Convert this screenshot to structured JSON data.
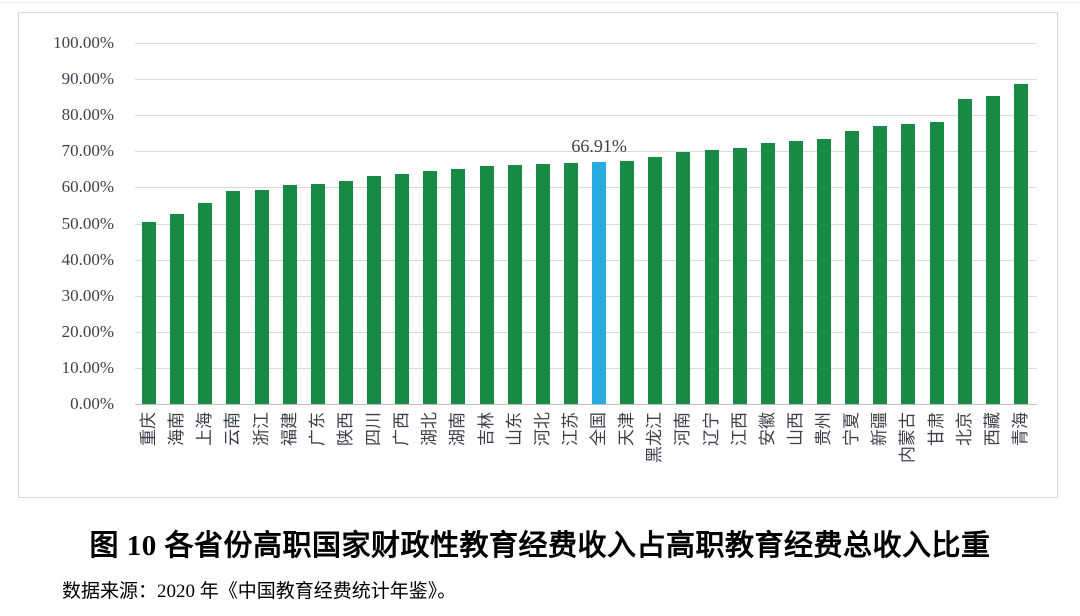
{
  "figure": {
    "caption": "图 10  各省份高职国家财政性教育经费收入占高职教育经费总收入比重",
    "source_note": "数据来源：2020 年《中国教育经费统计年鉴》。"
  },
  "chart_data": {
    "type": "bar",
    "title": "",
    "xlabel": "",
    "ylabel": "",
    "ylim": [
      0,
      100
    ],
    "grid": true,
    "legend": "none",
    "yticks": [
      "100.00%",
      "90.00%",
      "80.00%",
      "70.00%",
      "60.00%",
      "50.00%",
      "40.00%",
      "30.00%",
      "20.00%",
      "10.00%",
      "0.00%"
    ],
    "categories": [
      "重庆",
      "海南",
      "上海",
      "云南",
      "浙江",
      "福建",
      "广东",
      "陕西",
      "四川",
      "广西",
      "湖北",
      "湖南",
      "吉林",
      "山东",
      "河北",
      "江苏",
      "全国",
      "天津",
      "黑龙江",
      "河南",
      "辽宁",
      "江西",
      "安徽",
      "山西",
      "贵州",
      "宁夏",
      "新疆",
      "内蒙古",
      "甘肃",
      "北京",
      "西藏",
      "青海"
    ],
    "values": [
      50.4,
      52.6,
      55.6,
      58.9,
      59.4,
      60.6,
      61.0,
      61.9,
      63.3,
      63.8,
      64.6,
      65.0,
      65.8,
      66.3,
      66.6,
      66.8,
      66.91,
      67.2,
      68.5,
      69.8,
      70.5,
      70.9,
      72.3,
      72.8,
      73.4,
      75.7,
      76.9,
      77.6,
      78.2,
      84.6,
      85.3,
      88.6
    ],
    "highlight": {
      "category": "全国",
      "index": 16,
      "value": 66.91,
      "label": "66.91%"
    },
    "colors": {
      "bar": "#178b46",
      "highlight_bar": "#29abe2",
      "grid": "#d9d9d9",
      "axis": "#bfbfbf",
      "tick_text": "#3f3f4c",
      "annotation_text": "#404040"
    }
  }
}
